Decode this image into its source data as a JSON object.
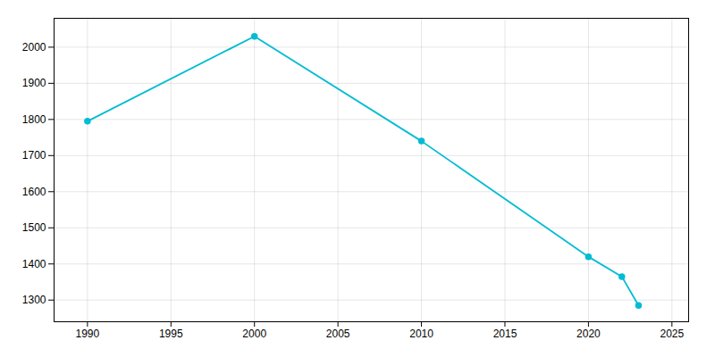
{
  "chart_data": {
    "type": "line",
    "x": [
      1990,
      2000,
      2010,
      2020,
      2022,
      2023
    ],
    "values": [
      1795,
      2030,
      1740,
      1420,
      1365,
      1285
    ],
    "color": "#00BCD4",
    "marker": "circle",
    "xlim": [
      1988,
      2026
    ],
    "ylim": [
      1240,
      2080
    ],
    "xticks": [
      1990,
      1995,
      2000,
      2005,
      2010,
      2015,
      2020,
      2025
    ],
    "yticks": [
      1300,
      1400,
      1500,
      1600,
      1700,
      1800,
      1900,
      2000
    ],
    "grid": true
  }
}
